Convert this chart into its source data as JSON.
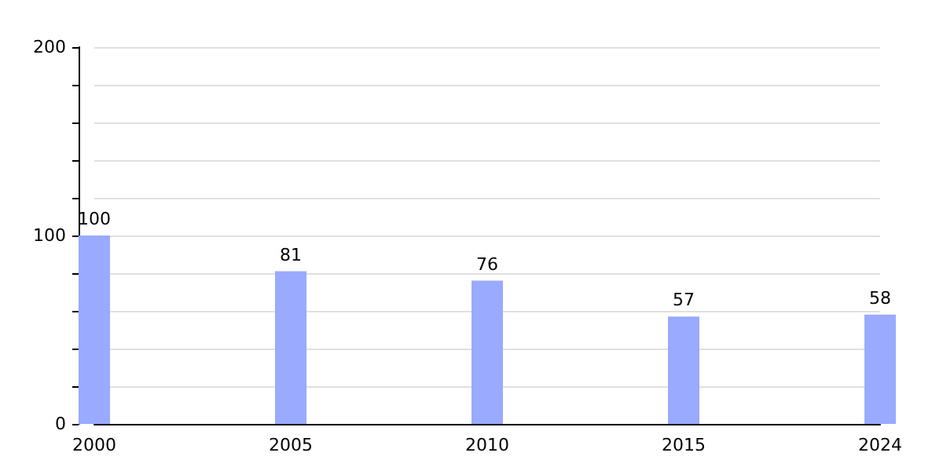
{
  "chart_data": {
    "type": "bar",
    "categories": [
      "2000",
      "2005",
      "2010",
      "2015",
      "2024"
    ],
    "values": [
      100,
      81,
      76,
      57,
      58
    ],
    "color": "#99aaff",
    "data_labels": true,
    "ylim": [
      0,
      200
    ],
    "yticks": [
      0,
      {
        "value": 20,
        "label": null
      },
      {
        "value": 40,
        "label": null
      },
      {
        "value": 60,
        "label": null
      },
      {
        "value": 80,
        "label": null
      },
      100,
      {
        "value": 120,
        "label": null
      },
      {
        "value": 140,
        "label": null
      },
      {
        "value": 160,
        "label": null
      },
      {
        "value": 180,
        "label": null
      },
      200
    ],
    "grid": true
  }
}
